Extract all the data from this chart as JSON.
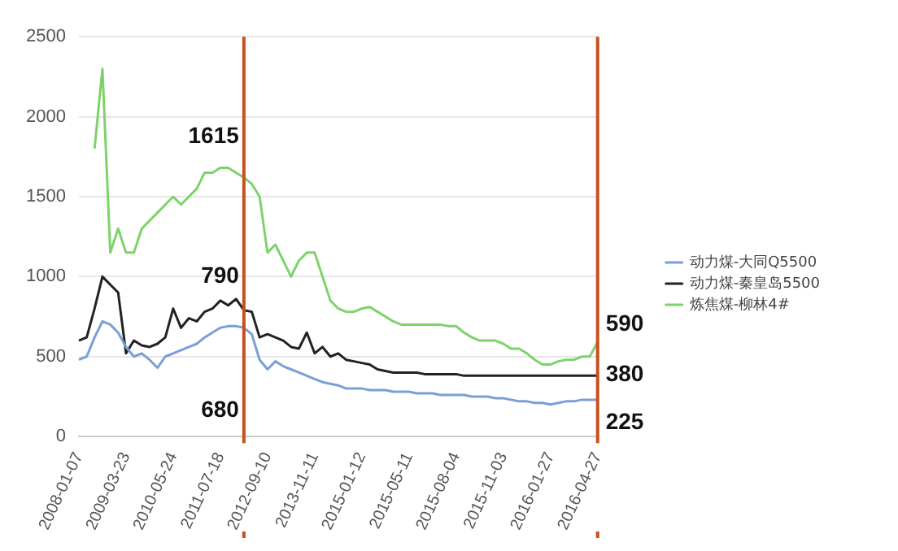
{
  "chart_data": {
    "type": "line",
    "categories": [
      "2008-01-07",
      null,
      null,
      null,
      null,
      null,
      "2009-03-23",
      null,
      null,
      null,
      null,
      null,
      "2010-05-24",
      null,
      null,
      null,
      null,
      null,
      "2011-07-18",
      null,
      null,
      null,
      null,
      null,
      "2012-09-10",
      null,
      null,
      null,
      null,
      null,
      "2013-11-11",
      null,
      null,
      null,
      null,
      null,
      "2015-01-12",
      null,
      null,
      null,
      null,
      null,
      "2015-05-11",
      null,
      null,
      null,
      null,
      null,
      "2015-08-04",
      null,
      null,
      null,
      null,
      null,
      "2015-11-03",
      null,
      null,
      null,
      null,
      null,
      "2016-01-27",
      null,
      null,
      null,
      null,
      null,
      "2016-04-27"
    ],
    "series": [
      {
        "name": "动力煤-大同Q5500",
        "color": "#7a9fd6",
        "values": [
          480,
          500,
          620,
          720,
          700,
          650,
          560,
          500,
          520,
          480,
          430,
          500,
          520,
          540,
          560,
          580,
          620,
          650,
          680,
          690,
          690,
          680,
          640,
          480,
          420,
          470,
          440,
          420,
          400,
          380,
          360,
          340,
          330,
          320,
          300,
          300,
          300,
          290,
          290,
          290,
          280,
          280,
          280,
          270,
          270,
          270,
          260,
          260,
          260,
          260,
          250,
          250,
          250,
          240,
          240,
          230,
          220,
          220,
          210,
          210,
          200,
          210,
          220,
          220,
          230,
          230,
          230
        ]
      },
      {
        "name": "动力煤-秦皇岛5500",
        "color": "#222222",
        "values": [
          600,
          620,
          800,
          1000,
          950,
          900,
          520,
          600,
          570,
          560,
          580,
          620,
          800,
          680,
          740,
          720,
          780,
          800,
          850,
          820,
          860,
          790,
          780,
          620,
          640,
          620,
          600,
          560,
          550,
          650,
          520,
          560,
          500,
          520,
          480,
          470,
          460,
          450,
          420,
          410,
          400,
          400,
          400,
          400,
          390,
          390,
          390,
          390,
          390,
          380,
          380,
          380,
          380,
          380,
          380,
          380,
          380,
          380,
          380,
          380,
          380,
          380,
          380,
          380,
          380,
          380,
          380
        ]
      },
      {
        "name": "炼焦煤-柳林4#",
        "color": "#7dd36a",
        "values": [
          null,
          null,
          1800,
          2300,
          1150,
          1300,
          1150,
          1150,
          1300,
          1350,
          1400,
          1450,
          1500,
          1450,
          1500,
          1550,
          1650,
          1650,
          1680,
          1680,
          1650,
          1620,
          1580,
          1500,
          1150,
          1200,
          1100,
          1000,
          1100,
          1150,
          1150,
          1000,
          850,
          800,
          780,
          780,
          800,
          810,
          780,
          750,
          720,
          700,
          700,
          700,
          700,
          700,
          700,
          690,
          690,
          650,
          620,
          600,
          600,
          600,
          580,
          550,
          550,
          520,
          480,
          450,
          450,
          470,
          480,
          480,
          500,
          500,
          590
        ]
      }
    ],
    "ylim": [
      0,
      2500
    ],
    "yticks": [
      0,
      500,
      1000,
      1500,
      2000,
      2500
    ],
    "grid": "y",
    "legend": "right",
    "marker": "none",
    "line_style": "solid",
    "annotations": [
      "1615",
      "790",
      "680",
      "590",
      "380",
      "225"
    ]
  }
}
